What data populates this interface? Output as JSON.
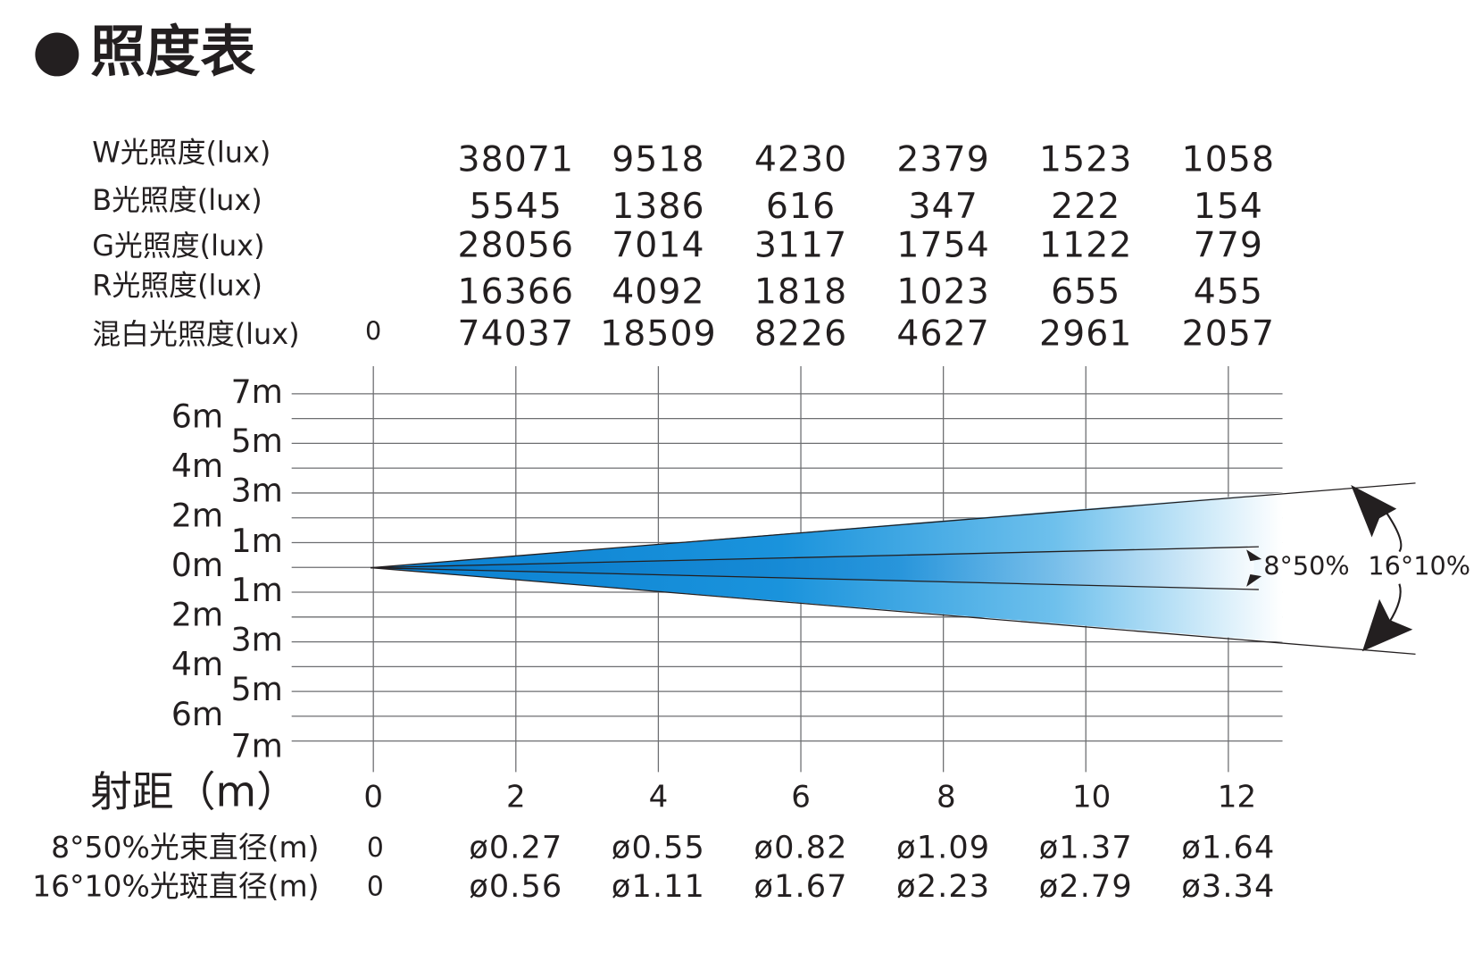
{
  "title": "照度表",
  "illuminance": {
    "zero": "0",
    "rows": [
      {
        "label": "W光照度(lux)",
        "values": [
          "38071",
          "9518",
          "4230",
          "2379",
          "1523",
          "1058"
        ]
      },
      {
        "label": "B光照度(lux)",
        "values": [
          "5545",
          "1386",
          "616",
          "347",
          "222",
          "154"
        ]
      },
      {
        "label": "G光照度(lux)",
        "values": [
          "28056",
          "7014",
          "3117",
          "1754",
          "1122",
          "779"
        ]
      },
      {
        "label": "R光照度(lux)",
        "values": [
          "16366",
          "4092",
          "1818",
          "1023",
          "655",
          "455"
        ]
      },
      {
        "label": "混白光照度(lux)",
        "values": [
          "74037",
          "18509",
          "8226",
          "4627",
          "2961",
          "2057"
        ]
      }
    ]
  },
  "axis": {
    "left_labels": [
      "6m",
      "4m",
      "2m",
      "0m",
      "2m",
      "4m",
      "6m"
    ],
    "right_labels": [
      "7m",
      "5m",
      "3m",
      "1m",
      "1m",
      "3m",
      "5m",
      "7m"
    ],
    "x_title": "射距（m）",
    "x_ticks": [
      "0",
      "2",
      "4",
      "6",
      "8",
      "10",
      "12"
    ]
  },
  "beam_labels": [
    "8°50%",
    "16°10%"
  ],
  "diameters": {
    "rows": [
      {
        "label": "8°50%光束直径(m)",
        "zero": "0",
        "values": [
          "ø0.27",
          "ø0.55",
          "ø0.82",
          "ø1.09",
          "ø1.37",
          "ø1.64"
        ]
      },
      {
        "label": "16°10%光斑直径(m)",
        "zero": "0",
        "values": [
          "ø0.56",
          "ø1.11",
          "ø1.67",
          "ø2.23",
          "ø2.79",
          "ø3.34"
        ]
      }
    ]
  }
}
